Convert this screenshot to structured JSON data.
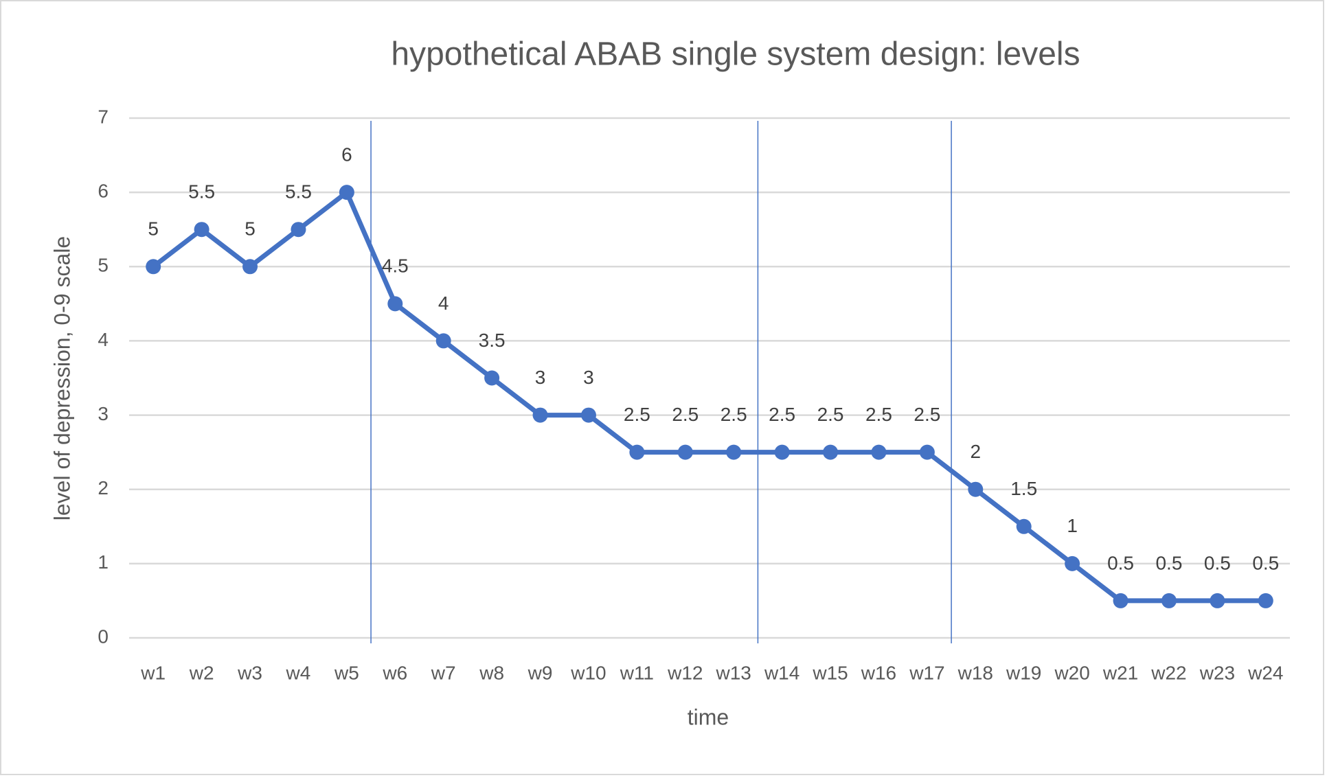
{
  "chart_data": {
    "type": "line",
    "title": "hypothetical ABAB single system design: levels",
    "x_label": "time",
    "y_label": "level of depression, 0-9 scale",
    "categories": [
      "w1",
      "w2",
      "w3",
      "w4",
      "w5",
      "w6",
      "w7",
      "w8",
      "w9",
      "w10",
      "w11",
      "w12",
      "w13",
      "w14",
      "w15",
      "w16",
      "w17",
      "w18",
      "w19",
      "w20",
      "w21",
      "w22",
      "w23",
      "w24"
    ],
    "series": [
      {
        "name": "level",
        "color": "#4472c4",
        "values": [
          5,
          5.5,
          5,
          5.5,
          6,
          4.5,
          4,
          3.5,
          3,
          3,
          2.5,
          2.5,
          2.5,
          2.5,
          2.5,
          2.5,
          2.5,
          2,
          1.5,
          1,
          0.5,
          0.5,
          0.5,
          0.5
        ]
      }
    ],
    "ylim": [
      0,
      7
    ],
    "yticks": [
      0,
      1,
      2,
      3,
      4,
      5,
      6,
      7
    ],
    "grid": true,
    "phase_lines": [
      5.5,
      13.5,
      17.5
    ]
  }
}
